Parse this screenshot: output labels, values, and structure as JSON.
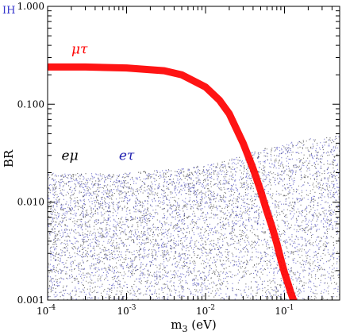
{
  "chart_data": {
    "type": "scatter",
    "corner_tag": "IH",
    "xlabel": "m₃ (eV)",
    "ylabel": "BR",
    "xscale": "log",
    "yscale": "log",
    "xlim": [
      0.0001,
      0.5
    ],
    "ylim": [
      0.001,
      1.0
    ],
    "x_ticks": [
      0.0001,
      0.001,
      0.01,
      0.1
    ],
    "x_tick_labels": [
      {
        "base": "10",
        "exp": "-4"
      },
      {
        "base": "10",
        "exp": "-3"
      },
      {
        "base": "10",
        "exp": "-2"
      },
      {
        "base": "10",
        "exp": "-1"
      }
    ],
    "y_ticks": [
      0.001,
      0.01,
      0.1,
      1.0
    ],
    "y_tick_labels": [
      "0.001",
      "0.010",
      "0.100",
      "1.000"
    ],
    "grid": false,
    "series": [
      {
        "name": "μτ",
        "color": "#ff0000",
        "kind": "band",
        "x": [
          0.0001,
          0.0003,
          0.001,
          0.003,
          0.005,
          0.01,
          0.015,
          0.02,
          0.03,
          0.04,
          0.05,
          0.06,
          0.07,
          0.08,
          0.09,
          0.1,
          0.11,
          0.12,
          0.13
        ],
        "y": [
          0.24,
          0.24,
          0.235,
          0.22,
          0.2,
          0.15,
          0.11,
          0.08,
          0.04,
          0.022,
          0.013,
          0.008,
          0.0055,
          0.0038,
          0.0026,
          0.0019,
          0.0015,
          0.0012,
          0.001
        ]
      },
      {
        "name": "eμ",
        "color": "#000000",
        "kind": "scatter",
        "x_range": [
          0.0001,
          0.5
        ],
        "y_lower": 0.001,
        "y_upper_x": [
          0.0001,
          0.001,
          0.01,
          0.03,
          0.05,
          0.1,
          0.2,
          0.5
        ],
        "y_upper": [
          0.02,
          0.02,
          0.024,
          0.03,
          0.035,
          0.04,
          0.045,
          0.048
        ]
      },
      {
        "name": "eτ",
        "color": "#2020b0",
        "kind": "scatter",
        "x_range": [
          0.0001,
          0.5
        ],
        "y_lower": 0.001,
        "y_upper_x": [
          0.0001,
          0.001,
          0.01,
          0.03,
          0.05,
          0.1,
          0.2,
          0.5
        ],
        "y_upper": [
          0.02,
          0.02,
          0.024,
          0.03,
          0.035,
          0.04,
          0.045,
          0.048
        ]
      }
    ],
    "annotations": [
      {
        "series": "μτ",
        "x": 0.0002,
        "y": 0.33
      },
      {
        "series": "eμ",
        "x": 0.00015,
        "y": 0.027
      },
      {
        "series": "eτ",
        "x": 0.0008,
        "y": 0.027
      }
    ]
  }
}
